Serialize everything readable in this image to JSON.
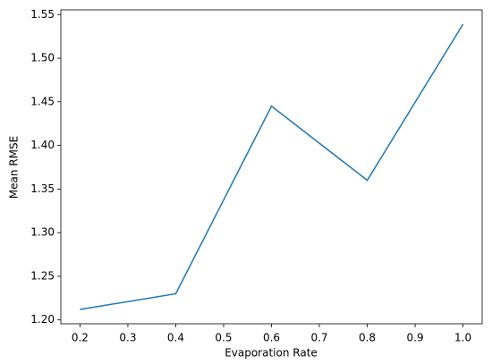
{
  "chart_data": {
    "type": "line",
    "xlabel": "Evaporation Rate",
    "ylabel": "Mean RMSE",
    "x": [
      0.2,
      0.4,
      0.6,
      0.8,
      1.0
    ],
    "series": [
      {
        "name": "Mean RMSE",
        "color": "#1f77b4",
        "values": [
          1.212,
          1.23,
          1.445,
          1.36,
          1.539
        ]
      }
    ],
    "xlim": [
      0.16,
      1.04
    ],
    "ylim": [
      1.1956,
      1.5554
    ],
    "xticks": [
      0.2,
      0.3,
      0.4,
      0.5,
      0.6,
      0.7,
      0.8,
      0.9,
      {
        "value": 1.0,
        "label": "1.0"
      }
    ],
    "yticks": [
      {
        "value": 1.2,
        "label": "1.20"
      },
      1.25,
      {
        "value": 1.3,
        "label": "1.30"
      },
      1.35,
      {
        "value": 1.4,
        "label": "1.40"
      },
      1.45,
      {
        "value": 1.5,
        "label": "1.50"
      },
      1.55
    ],
    "grid": false
  }
}
